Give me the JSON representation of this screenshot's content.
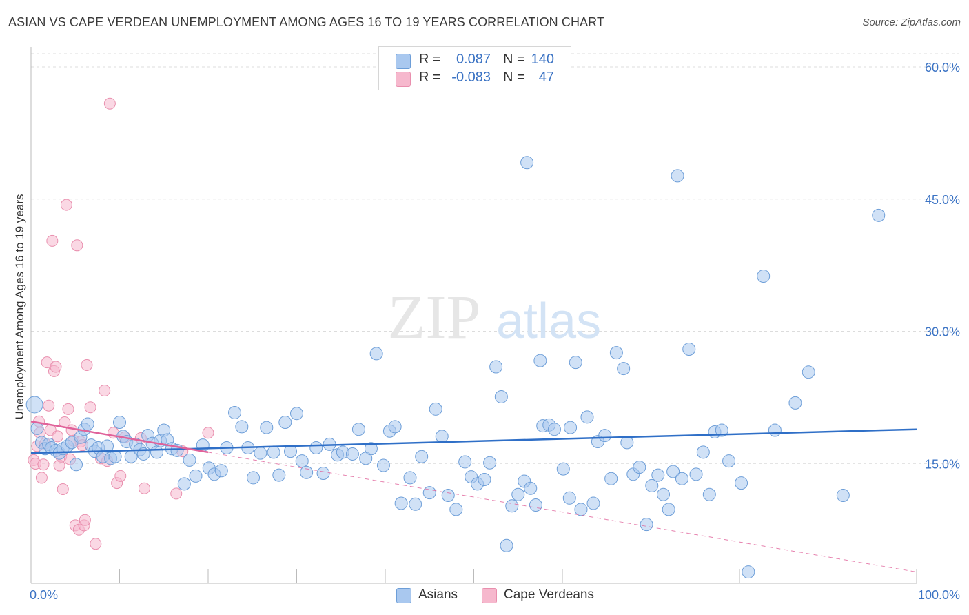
{
  "title": "ASIAN VS CAPE VERDEAN UNEMPLOYMENT AMONG AGES 16 TO 19 YEARS CORRELATION CHART",
  "source": "Source: ZipAtlas.com",
  "watermark": {
    "zip": "ZIP",
    "atlas": "atlas"
  },
  "legend": {
    "rows": [
      {
        "r_label": "R =",
        "r_value": "0.087",
        "n_label": "N =",
        "n_value": "140",
        "color": "#a9c8ef"
      },
      {
        "r_label": "R =",
        "r_value": "-0.083",
        "n_label": "N =",
        "n_value": "47",
        "color": "#f6b8cd"
      }
    ]
  },
  "bottom_legend": [
    {
      "label": "Asians",
      "color": "#a9c8ef"
    },
    {
      "label": "Cape Verdeans",
      "color": "#f6b8cd"
    }
  ],
  "chart_data": {
    "type": "scatter",
    "title": "ASIAN VS CAPE VERDEAN UNEMPLOYMENT AMONG AGES 16 TO 19 YEARS CORRELATION CHART",
    "xlabel": "",
    "ylabel": "Unemployment Among Ages 16 to 19 years",
    "xlim": [
      0,
      100
    ],
    "ylim": [
      0,
      60
    ],
    "x_tick_labels": [
      "0.0%",
      "100.0%"
    ],
    "y_ticks": [
      15,
      30,
      45,
      60
    ],
    "y_tick_labels": [
      "15.0%",
      "30.0%",
      "45.0%",
      "60.0%"
    ],
    "grid": true,
    "colors": {
      "asians_fill": "#a9c8ef",
      "asians_stroke": "#6d9ed8",
      "asians_line": "#2f6fc7",
      "cape_fill": "#f6b8cd",
      "cape_stroke": "#e98fae",
      "cape_line": "#e0629a",
      "grid": "#dcdcdc",
      "tick_text": "#3b73c4"
    },
    "series": [
      {
        "name": "Asians",
        "trend": {
          "x": [
            0,
            100
          ],
          "y": [
            16.0,
            18.7
          ],
          "style": "solid"
        },
        "points": [
          [
            0.4,
            21.5
          ],
          [
            0.7,
            18.8
          ],
          [
            1.2,
            17.2
          ],
          [
            1.6,
            16.5
          ],
          [
            2.0,
            17.0
          ],
          [
            2.3,
            16.6
          ],
          [
            2.8,
            16.3
          ],
          [
            3.2,
            16.0
          ],
          [
            3.6,
            16.5
          ],
          [
            4.1,
            16.8
          ],
          [
            4.6,
            17.2
          ],
          [
            5.1,
            14.7
          ],
          [
            5.6,
            17.8
          ],
          [
            6.0,
            18.7
          ],
          [
            6.4,
            19.3
          ],
          [
            6.8,
            16.9
          ],
          [
            7.2,
            16.2
          ],
          [
            7.6,
            16.6
          ],
          [
            8.1,
            15.6
          ],
          [
            8.6,
            16.8
          ],
          [
            9.0,
            15.4
          ],
          [
            9.5,
            15.6
          ],
          [
            10.0,
            19.5
          ],
          [
            10.4,
            17.9
          ],
          [
            10.8,
            17.3
          ],
          [
            11.3,
            15.6
          ],
          [
            11.8,
            17.0
          ],
          [
            12.3,
            16.4
          ],
          [
            12.7,
            15.9
          ],
          [
            13.2,
            18.0
          ],
          [
            13.7,
            17.1
          ],
          [
            14.2,
            16.1
          ],
          [
            14.6,
            17.4
          ],
          [
            15.0,
            18.6
          ],
          [
            15.4,
            17.5
          ],
          [
            15.9,
            16.5
          ],
          [
            16.5,
            16.3
          ],
          [
            17.3,
            12.5
          ],
          [
            17.9,
            15.2
          ],
          [
            18.6,
            13.4
          ],
          [
            19.4,
            16.9
          ],
          [
            20.1,
            14.3
          ],
          [
            20.7,
            13.6
          ],
          [
            21.5,
            14.0
          ],
          [
            22.1,
            16.6
          ],
          [
            23.0,
            20.6
          ],
          [
            23.8,
            19.0
          ],
          [
            24.5,
            16.6
          ],
          [
            25.1,
            13.2
          ],
          [
            25.9,
            16.0
          ],
          [
            26.6,
            18.9
          ],
          [
            27.4,
            16.1
          ],
          [
            28.0,
            13.5
          ],
          [
            28.7,
            19.5
          ],
          [
            29.3,
            16.2
          ],
          [
            30.0,
            20.5
          ],
          [
            30.6,
            15.1
          ],
          [
            31.1,
            13.8
          ],
          [
            32.2,
            16.6
          ],
          [
            33.0,
            13.7
          ],
          [
            33.7,
            17.0
          ],
          [
            34.6,
            15.8
          ],
          [
            35.2,
            16.1
          ],
          [
            36.3,
            15.9
          ],
          [
            37.0,
            18.7
          ],
          [
            37.8,
            15.4
          ],
          [
            38.4,
            16.5
          ],
          [
            39.0,
            27.3
          ],
          [
            39.8,
            14.6
          ],
          [
            40.5,
            18.5
          ],
          [
            41.1,
            19.0
          ],
          [
            41.8,
            10.3
          ],
          [
            42.8,
            13.2
          ],
          [
            43.4,
            10.2
          ],
          [
            44.1,
            15.6
          ],
          [
            45.0,
            11.5
          ],
          [
            45.7,
            21.0
          ],
          [
            46.4,
            17.9
          ],
          [
            47.1,
            11.2
          ],
          [
            48.0,
            9.6
          ],
          [
            49.0,
            15.0
          ],
          [
            49.7,
            13.3
          ],
          [
            50.4,
            12.5
          ],
          [
            51.2,
            13.0
          ],
          [
            51.8,
            14.9
          ],
          [
            52.5,
            25.8
          ],
          [
            53.1,
            22.4
          ],
          [
            53.7,
            5.5
          ],
          [
            54.3,
            10.0
          ],
          [
            55.0,
            11.3
          ],
          [
            55.7,
            12.8
          ],
          [
            56.4,
            12.0
          ],
          [
            57.0,
            10.1
          ],
          [
            57.8,
            19.1
          ],
          [
            58.5,
            19.2
          ],
          [
            59.1,
            18.7
          ],
          [
            60.1,
            14.2
          ],
          [
            60.8,
            10.9
          ],
          [
            61.5,
            26.3
          ],
          [
            62.1,
            9.6
          ],
          [
            62.8,
            20.1
          ],
          [
            63.5,
            10.3
          ],
          [
            64.0,
            17.3
          ],
          [
            64.8,
            18.0
          ],
          [
            65.5,
            13.1
          ],
          [
            66.1,
            27.4
          ],
          [
            66.9,
            25.6
          ],
          [
            67.3,
            17.2
          ],
          [
            68.0,
            13.6
          ],
          [
            68.7,
            14.4
          ],
          [
            69.5,
            7.9
          ],
          [
            70.1,
            12.3
          ],
          [
            70.8,
            13.5
          ],
          [
            71.4,
            11.3
          ],
          [
            72.0,
            9.6
          ],
          [
            72.5,
            13.9
          ],
          [
            73.0,
            47.5
          ],
          [
            73.5,
            13.1
          ],
          [
            74.3,
            27.8
          ],
          [
            75.1,
            13.6
          ],
          [
            75.9,
            16.1
          ],
          [
            76.6,
            11.3
          ],
          [
            77.2,
            18.4
          ],
          [
            78.0,
            18.6
          ],
          [
            78.8,
            15.1
          ],
          [
            80.2,
            12.6
          ],
          [
            81.0,
            2.5
          ],
          [
            82.7,
            36.1
          ],
          [
            84.0,
            18.6
          ],
          [
            86.3,
            21.7
          ],
          [
            87.8,
            25.2
          ],
          [
            91.7,
            11.2
          ],
          [
            95.7,
            43.0
          ],
          [
            56.0,
            49.0
          ],
          [
            57.5,
            26.5
          ],
          [
            60.9,
            18.9
          ]
        ]
      },
      {
        "name": "Cape Verdeans",
        "trend": {
          "x": [
            0,
            20
          ],
          "y": [
            19.6,
            16.1
          ],
          "style": "solid",
          "extended": {
            "x": [
              20,
              100
            ],
            "y": [
              16.1,
              2.5
            ],
            "style": "dashed"
          }
        },
        "points": [
          [
            0.3,
            15.2
          ],
          [
            0.5,
            14.8
          ],
          [
            0.7,
            16.8
          ],
          [
            0.9,
            19.6
          ],
          [
            1.0,
            18.3
          ],
          [
            1.2,
            13.2
          ],
          [
            1.4,
            14.7
          ],
          [
            1.6,
            17.1
          ],
          [
            1.8,
            26.3
          ],
          [
            2.0,
            21.4
          ],
          [
            2.2,
            18.6
          ],
          [
            2.4,
            40.1
          ],
          [
            2.6,
            25.3
          ],
          [
            2.8,
            25.8
          ],
          [
            3.0,
            17.9
          ],
          [
            3.2,
            14.6
          ],
          [
            3.4,
            15.6
          ],
          [
            3.6,
            11.9
          ],
          [
            3.8,
            19.5
          ],
          [
            4.0,
            44.2
          ],
          [
            4.2,
            21.0
          ],
          [
            4.4,
            15.3
          ],
          [
            4.6,
            18.6
          ],
          [
            4.8,
            17.4
          ],
          [
            5.0,
            7.8
          ],
          [
            5.2,
            39.6
          ],
          [
            5.4,
            7.3
          ],
          [
            5.6,
            17.3
          ],
          [
            5.8,
            16.9
          ],
          [
            6.0,
            7.8
          ],
          [
            6.3,
            26.0
          ],
          [
            6.7,
            21.2
          ],
          [
            6.1,
            8.4
          ],
          [
            7.3,
            5.7
          ],
          [
            7.9,
            15.4
          ],
          [
            8.3,
            23.1
          ],
          [
            8.6,
            15.1
          ],
          [
            8.9,
            55.7
          ],
          [
            9.3,
            18.3
          ],
          [
            9.7,
            12.6
          ],
          [
            10.1,
            13.4
          ],
          [
            10.6,
            17.8
          ],
          [
            12.8,
            12.0
          ],
          [
            16.4,
            11.4
          ],
          [
            17.1,
            16.2
          ],
          [
            20.0,
            18.3
          ],
          [
            12.4,
            17.7
          ]
        ]
      }
    ]
  }
}
